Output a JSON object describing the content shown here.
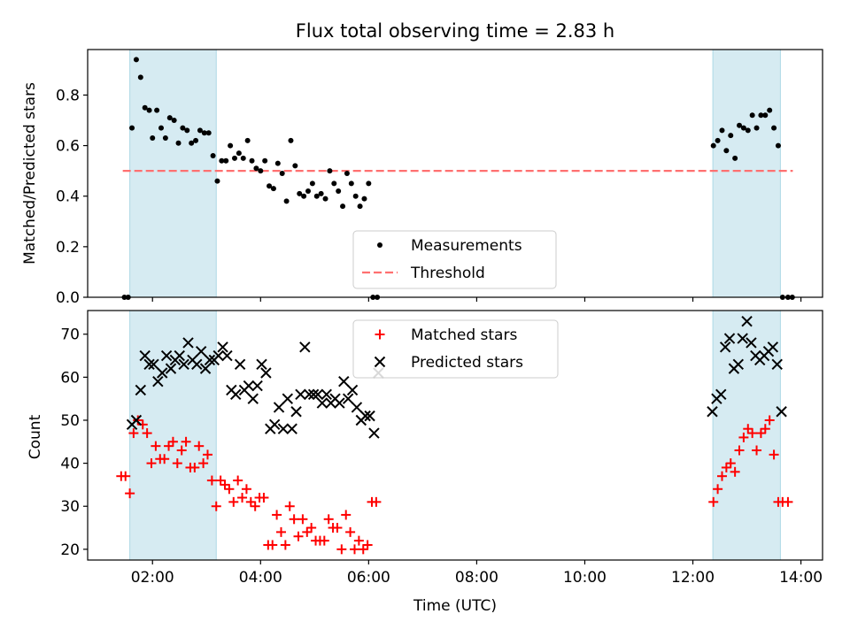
{
  "chart_data": [
    {
      "type": "scatter",
      "title": "Flux total observing time = 2.83 h",
      "xlabel": "",
      "ylabel": "Matched/Predicted stars",
      "x_unit": "hours UTC",
      "xlim": [
        0.8,
        14.4
      ],
      "ylim": [
        0,
        0.98
      ],
      "yticks": [
        0.0,
        0.2,
        0.4,
        0.6,
        0.8
      ],
      "ytick_labels": [
        "0.0",
        "0.2",
        "0.4",
        "0.6",
        "0.8"
      ],
      "shaded_intervals": [
        [
          1.58,
          3.18
        ],
        [
          12.37,
          13.62
        ]
      ],
      "shade_color": "#add8e6",
      "threshold": {
        "name": "Threshold",
        "y": 0.5,
        "x_range": [
          1.45,
          13.85
        ],
        "color": "#ff7070"
      },
      "legend": {
        "placement": "lower-center",
        "entries": [
          "Measurements",
          "Threshold"
        ]
      },
      "series": [
        {
          "name": "Measurements",
          "color": "#000000",
          "x": [
            1.48,
            1.55,
            1.62,
            1.7,
            1.78,
            1.86,
            1.94,
            2.0,
            2.08,
            2.16,
            2.24,
            2.32,
            2.4,
            2.48,
            2.56,
            2.64,
            2.72,
            2.8,
            2.88,
            2.96,
            3.04,
            3.12,
            3.2,
            3.28,
            3.36,
            3.44,
            3.52,
            3.6,
            3.68,
            3.76,
            3.84,
            3.92,
            4.0,
            4.08,
            4.16,
            4.24,
            4.32,
            4.4,
            4.48,
            4.56,
            4.64,
            4.72,
            4.8,
            4.88,
            4.96,
            5.04,
            5.12,
            5.2,
            5.28,
            5.36,
            5.44,
            5.52,
            5.6,
            5.68,
            5.76,
            5.84,
            5.92,
            6.0,
            6.08,
            6.16,
            12.38,
            12.46,
            12.54,
            12.62,
            12.7,
            12.78,
            12.86,
            12.94,
            13.02,
            13.1,
            13.18,
            13.26,
            13.34,
            13.42,
            13.5,
            13.58,
            13.66,
            13.76,
            13.84
          ],
          "y": [
            0.0,
            0.0,
            0.67,
            0.94,
            0.87,
            0.75,
            0.74,
            0.63,
            0.74,
            0.67,
            0.63,
            0.71,
            0.7,
            0.61,
            0.67,
            0.66,
            0.61,
            0.62,
            0.66,
            0.65,
            0.65,
            0.56,
            0.46,
            0.54,
            0.54,
            0.6,
            0.55,
            0.57,
            0.55,
            0.62,
            0.54,
            0.51,
            0.5,
            0.54,
            0.44,
            0.43,
            0.53,
            0.49,
            0.38,
            0.62,
            0.52,
            0.41,
            0.4,
            0.42,
            0.45,
            0.4,
            0.41,
            0.39,
            0.5,
            0.45,
            0.42,
            0.36,
            0.49,
            0.45,
            0.4,
            0.36,
            0.39,
            0.45,
            0.0,
            0.0,
            0.6,
            0.62,
            0.66,
            0.58,
            0.64,
            0.55,
            0.68,
            0.67,
            0.66,
            0.72,
            0.67,
            0.72,
            0.72,
            0.74,
            0.67,
            0.6,
            0.0,
            0.0,
            0.0
          ]
        }
      ]
    },
    {
      "type": "scatter",
      "title": "",
      "xlabel": "Time (UTC)",
      "ylabel": "Count",
      "x_unit": "hours UTC",
      "xlim": [
        0.8,
        14.4
      ],
      "ylim": [
        17.5,
        75.5
      ],
      "xticks": [
        2,
        4,
        6,
        8,
        10,
        12,
        14
      ],
      "xtick_labels": [
        "02:00",
        "04:00",
        "06:00",
        "08:00",
        "10:00",
        "12:00",
        "14:00"
      ],
      "yticks": [
        20,
        30,
        40,
        50,
        60,
        70
      ],
      "ytick_labels": [
        "20",
        "30",
        "40",
        "50",
        "60",
        "70"
      ],
      "shaded_intervals": [
        [
          1.58,
          3.18
        ],
        [
          12.37,
          13.62
        ]
      ],
      "shade_color": "#add8e6",
      "legend": {
        "placement": "upper-center",
        "entries": [
          "Matched stars",
          "Predicted stars"
        ]
      },
      "series": [
        {
          "name": "Matched stars",
          "marker": "plus",
          "color": "#ff0000",
          "x": [
            1.42,
            1.5,
            1.58,
            1.65,
            1.73,
            1.82,
            1.9,
            1.98,
            2.06,
            2.14,
            2.22,
            2.3,
            2.38,
            2.46,
            2.54,
            2.62,
            2.7,
            2.78,
            2.86,
            2.94,
            3.02,
            3.1,
            3.18,
            3.26,
            3.34,
            3.42,
            3.5,
            3.58,
            3.66,
            3.74,
            3.82,
            3.9,
            3.98,
            4.06,
            4.14,
            4.22,
            4.3,
            4.38,
            4.46,
            4.54,
            4.62,
            4.7,
            4.78,
            4.86,
            4.94,
            5.02,
            5.1,
            5.18,
            5.26,
            5.34,
            5.42,
            5.5,
            5.58,
            5.66,
            5.74,
            5.82,
            5.9,
            5.98,
            6.06,
            6.14,
            12.38,
            12.46,
            12.54,
            12.62,
            12.7,
            12.78,
            12.86,
            12.94,
            13.02,
            13.1,
            13.18,
            13.26,
            13.34,
            13.42,
            13.5,
            13.58,
            13.66,
            13.76
          ],
          "y": [
            37,
            37,
            33,
            47,
            50,
            49,
            47,
            40,
            44,
            41,
            41,
            44,
            45,
            40,
            43,
            45,
            39,
            39,
            44,
            40,
            42,
            36,
            30,
            36,
            35,
            34,
            31,
            36,
            32,
            34,
            31,
            30,
            32,
            32,
            21,
            21,
            28,
            24,
            21,
            30,
            27,
            23,
            27,
            24,
            25,
            22,
            22,
            22,
            27,
            25,
            25,
            20,
            28,
            24,
            20,
            22,
            20,
            21,
            31,
            31,
            31,
            34,
            37,
            39,
            40,
            38,
            43,
            46,
            48,
            47,
            43,
            47,
            48,
            50,
            42,
            31,
            31,
            31
          ],
          "x_fix": true
        },
        {
          "name": "Predicted stars",
          "marker": "x",
          "color": "#000000",
          "x": [
            1.62,
            1.7,
            1.78,
            1.86,
            1.94,
            2.02,
            2.1,
            2.18,
            2.26,
            2.34,
            2.42,
            2.5,
            2.58,
            2.66,
            2.74,
            2.82,
            2.9,
            2.98,
            3.06,
            3.14,
            3.22,
            3.3,
            3.38,
            3.46,
            3.54,
            3.62,
            3.7,
            3.78,
            3.86,
            3.94,
            4.02,
            4.1,
            4.18,
            4.26,
            4.34,
            4.42,
            4.5,
            4.58,
            4.66,
            4.74,
            4.82,
            4.9,
            4.98,
            5.06,
            5.14,
            5.22,
            5.3,
            5.38,
            5.46,
            5.54,
            5.62,
            5.7,
            5.78,
            5.86,
            5.94,
            6.02,
            6.1,
            6.18,
            12.36,
            12.44,
            12.52,
            12.6,
            12.68,
            12.76,
            12.84,
            12.92,
            13.0,
            13.08,
            13.16,
            13.24,
            13.32,
            13.4,
            13.48,
            13.56,
            13.64
          ],
          "y": [
            49,
            50,
            57,
            65,
            63,
            63,
            59,
            61,
            65,
            62,
            64,
            65,
            63,
            68,
            64,
            63,
            66,
            62,
            64,
            64,
            65,
            67,
            65,
            57,
            56,
            63,
            57,
            58,
            55,
            58,
            63,
            61,
            48,
            49,
            53,
            48,
            55,
            48,
            52,
            56,
            67,
            56,
            56,
            56,
            54,
            56,
            54,
            55,
            54,
            59,
            55,
            57,
            53,
            50,
            51,
            51,
            47,
            61,
            52,
            55,
            56,
            67,
            69,
            62,
            63,
            69,
            73,
            68,
            65,
            64,
            65,
            66,
            67,
            63,
            52
          ]
        }
      ]
    }
  ]
}
